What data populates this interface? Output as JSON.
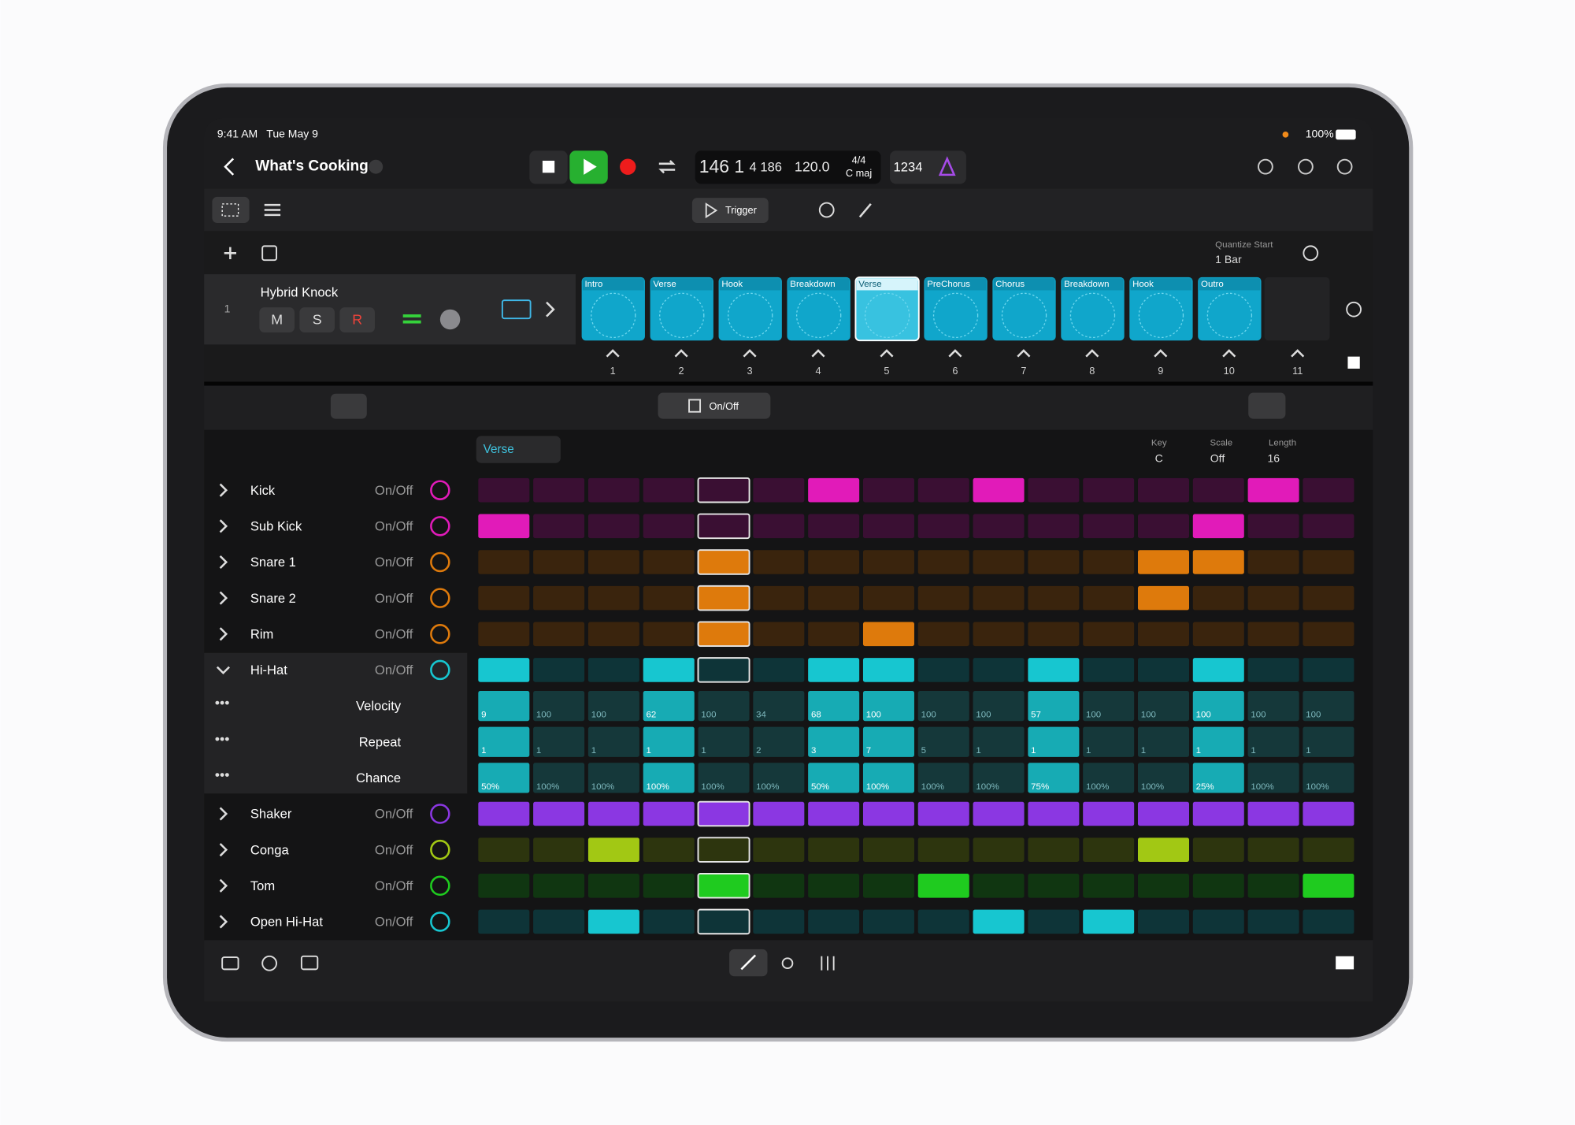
{
  "status_bar": {
    "time": "9:41 AM",
    "date": "Tue May 9",
    "battery": "100%"
  },
  "header": {
    "project": "What's Cooking",
    "position_bar": "146 1",
    "position_sub": "4 186",
    "tempo": "120.0",
    "signature": "4/4",
    "key": "C maj",
    "count_in": "1234"
  },
  "live_loops": {
    "play_mode": "Trigger",
    "quantize_label": "Quantize Start",
    "quantize_value": "1 Bar",
    "scenes": [
      "Intro",
      "Verse",
      "Hook",
      "Breakdown",
      "Verse",
      "PreChorus",
      "Chorus",
      "Breakdown",
      "Hook",
      "Outro"
    ],
    "columns": [
      1,
      2,
      3,
      4,
      5,
      6,
      7,
      8,
      9,
      10,
      11
    ]
  },
  "track": {
    "number": 1,
    "name": "Hybrid Knock",
    "buttons": [
      "M",
      "S",
      "R"
    ]
  },
  "step_sequencer": {
    "mode": "On/Off",
    "pattern": "Verse",
    "key_label": "Key",
    "key": "C",
    "scale_label": "Scale",
    "scale": "Off",
    "length_label": "Length",
    "length": 16,
    "rows": [
      {
        "name": "Kick",
        "mode": "On/Off",
        "color": "#e11bb9",
        "steps": [
          0,
          0,
          0,
          0,
          0,
          0,
          1,
          0,
          0,
          1,
          0,
          0,
          0,
          0,
          1,
          0
        ]
      },
      {
        "name": "Sub Kick",
        "mode": "On/Off",
        "color": "#e11bb9",
        "steps": [
          1,
          0,
          0,
          0,
          0,
          0,
          0,
          0,
          0,
          0,
          0,
          0,
          0,
          1,
          0,
          0
        ]
      },
      {
        "name": "Snare 1",
        "mode": "On/Off",
        "color": "#de7a0c",
        "steps": [
          0,
          0,
          0,
          0,
          1,
          0,
          0,
          0,
          0,
          0,
          0,
          0,
          1,
          1,
          0,
          0
        ]
      },
      {
        "name": "Snare 2",
        "mode": "On/Off",
        "color": "#de7a0c",
        "steps": [
          0,
          0,
          0,
          0,
          1,
          0,
          0,
          0,
          0,
          0,
          0,
          0,
          1,
          0,
          0,
          0
        ]
      },
      {
        "name": "Rim",
        "mode": "On/Off",
        "color": "#de7a0c",
        "steps": [
          0,
          0,
          0,
          0,
          1,
          0,
          0,
          1,
          0,
          0,
          0,
          0,
          0,
          0,
          0,
          0
        ]
      },
      {
        "name": "Hi-Hat",
        "mode": "On/Off",
        "color": "#17c6d0",
        "steps": [
          1,
          0,
          0,
          1,
          0,
          0,
          1,
          1,
          0,
          0,
          1,
          0,
          0,
          1,
          0,
          0
        ],
        "lanes": [
          {
            "name": "Velocity",
            "values": [
              9,
              100,
              100,
              62,
              100,
              34,
              68,
              100,
              100,
              100,
              57,
              100,
              100,
              100,
              100,
              100
            ]
          },
          {
            "name": "Repeat",
            "values": [
              1,
              1,
              1,
              1,
              1,
              2,
              3,
              7,
              5,
              1,
              1,
              1,
              1,
              1,
              1,
              1
            ]
          },
          {
            "name": "Chance",
            "values": [
              "50%",
              "100%",
              "100%",
              "100%",
              "100%",
              "100%",
              "50%",
              "100%",
              "100%",
              "100%",
              "75%",
              "100%",
              "100%",
              "25%",
              "100%",
              "100%"
            ]
          }
        ]
      },
      {
        "name": "Shaker",
        "mode": "On/Off",
        "color": "#8b37e2",
        "steps": [
          1,
          1,
          1,
          1,
          1,
          1,
          1,
          1,
          1,
          1,
          1,
          1,
          1,
          1,
          1,
          1
        ]
      },
      {
        "name": "Conga",
        "mode": "On/Off",
        "color": "#a2c814",
        "steps": [
          0,
          0,
          1,
          0,
          0,
          0,
          0,
          0,
          0,
          0,
          0,
          0,
          1,
          0,
          0,
          0
        ]
      },
      {
        "name": "Tom",
        "mode": "On/Off",
        "color": "#1fcb1f",
        "steps": [
          0,
          0,
          0,
          0,
          1,
          0,
          0,
          0,
          1,
          0,
          0,
          0,
          0,
          0,
          0,
          1
        ]
      },
      {
        "name": "Open Hi-Hat",
        "mode": "On/Off",
        "color": "#17c6d0",
        "steps": [
          0,
          0,
          1,
          0,
          0,
          0,
          0,
          0,
          0,
          1,
          0,
          1,
          0,
          0,
          0,
          0
        ]
      }
    ]
  }
}
